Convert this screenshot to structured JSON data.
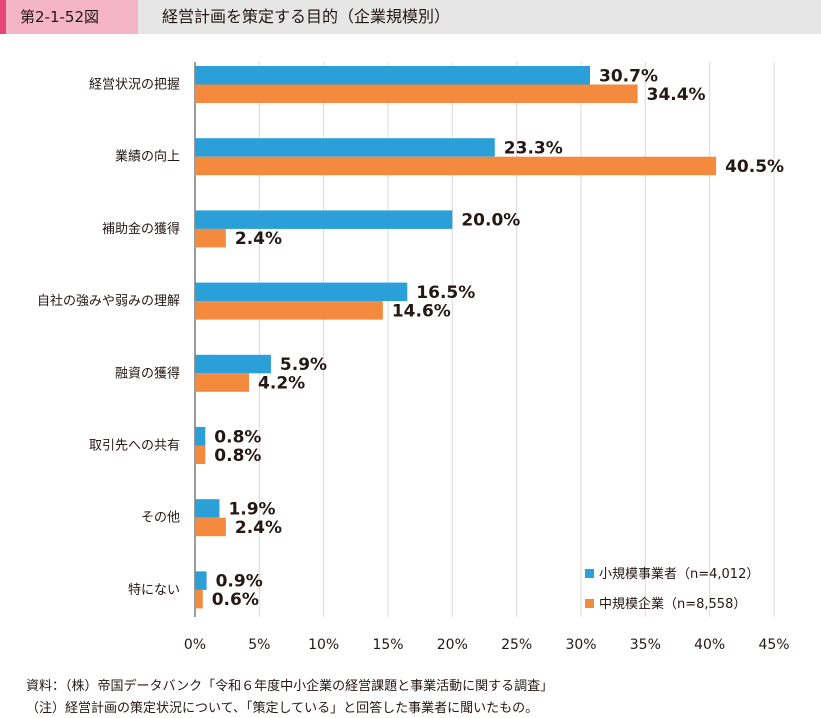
{
  "header": {
    "figure_number": "第2-1-52図",
    "title": "経営計画を策定する目的（企業規模別）"
  },
  "colors": {
    "small": "#2a9fd8",
    "medium": "#f48a3d",
    "grid": "#d9d9d9",
    "axis": "#595959"
  },
  "chart_data": {
    "type": "bar",
    "orientation": "horizontal",
    "categories": [
      "経営状況の把握",
      "業績の向上",
      "補助金の獲得",
      "自社の強みや弱みの理解",
      "融資の獲得",
      "取引先への共有",
      "その他",
      "特にない"
    ],
    "series": [
      {
        "name": "小規模事業者（n=4,012）",
        "values": [
          30.7,
          23.3,
          20.0,
          16.5,
          5.9,
          0.8,
          1.9,
          0.9
        ],
        "labels": [
          "30.7%",
          "23.3%",
          "20.0%",
          "16.5%",
          "5.9%",
          "0.8%",
          "1.9%",
          "0.9%"
        ]
      },
      {
        "name": "中規模企業（n=8,558）",
        "values": [
          34.4,
          40.5,
          2.4,
          14.6,
          4.2,
          0.8,
          2.4,
          0.6
        ],
        "labels": [
          "34.4%",
          "40.5%",
          "2.4%",
          "14.6%",
          "4.2%",
          "0.8%",
          "2.4%",
          "0.6%"
        ]
      }
    ],
    "x_ticks": [
      0,
      5,
      10,
      15,
      20,
      25,
      30,
      35,
      40,
      45
    ],
    "x_tick_labels": [
      "0%",
      "5%",
      "10%",
      "15%",
      "20%",
      "25%",
      "30%",
      "35%",
      "40%",
      "45%"
    ],
    "xlim": [
      0,
      45
    ],
    "grid": true,
    "legend_position": "bottom-right"
  },
  "footnotes": {
    "source": "資料：（株）帝国データバンク「令和６年度中小企業の経営課題と事業活動に関する調査」",
    "note": "（注）経営計画の策定状況について、「策定している」と回答した事業者に聞いたもの。"
  }
}
